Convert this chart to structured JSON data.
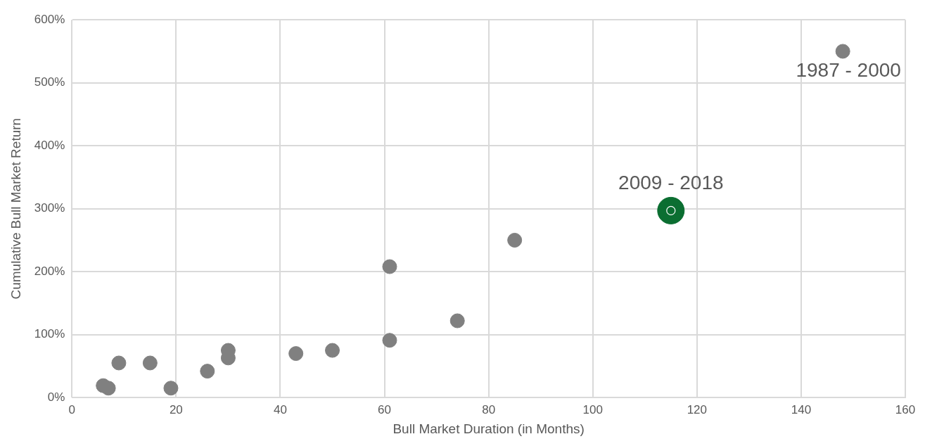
{
  "chart_data": {
    "type": "scatter",
    "xlabel": "Bull Market Duration (in Months)",
    "ylabel": "Cumulative Bull Market Return",
    "series": [
      {
        "color": "#808080",
        "x": [
          6,
          7,
          9,
          15,
          19,
          26,
          30,
          30,
          43,
          50,
          61,
          61,
          74,
          85,
          148
        ],
        "values": [
          19,
          15,
          55,
          55,
          15,
          42,
          75,
          63,
          70,
          75,
          91,
          208,
          122,
          250,
          550
        ]
      },
      {
        "color": "#0b6e31",
        "x": [
          115
        ],
        "values": [
          297
        ]
      }
    ],
    "annotations": [
      {
        "text": "1987 - 2000",
        "x": 148,
        "y": 550
      },
      {
        "text": "2009 - 2018",
        "x": 115,
        "y": 297
      }
    ],
    "xlim": [
      0,
      160
    ],
    "xticks": [
      0,
      20,
      40,
      60,
      80,
      100,
      120,
      140,
      160
    ],
    "ylim": [
      0,
      600
    ],
    "yticks": [
      {
        "value": 0,
        "label": "0%"
      },
      {
        "value": 100,
        "label": "100%"
      },
      {
        "value": 200,
        "label": "200%"
      },
      {
        "value": 300,
        "label": "300%"
      },
      {
        "value": 400,
        "label": "400%"
      },
      {
        "value": 500,
        "label": "500%"
      },
      {
        "value": 600,
        "label": "600%"
      }
    ],
    "grid": true,
    "legend": false,
    "marker": "circle"
  }
}
